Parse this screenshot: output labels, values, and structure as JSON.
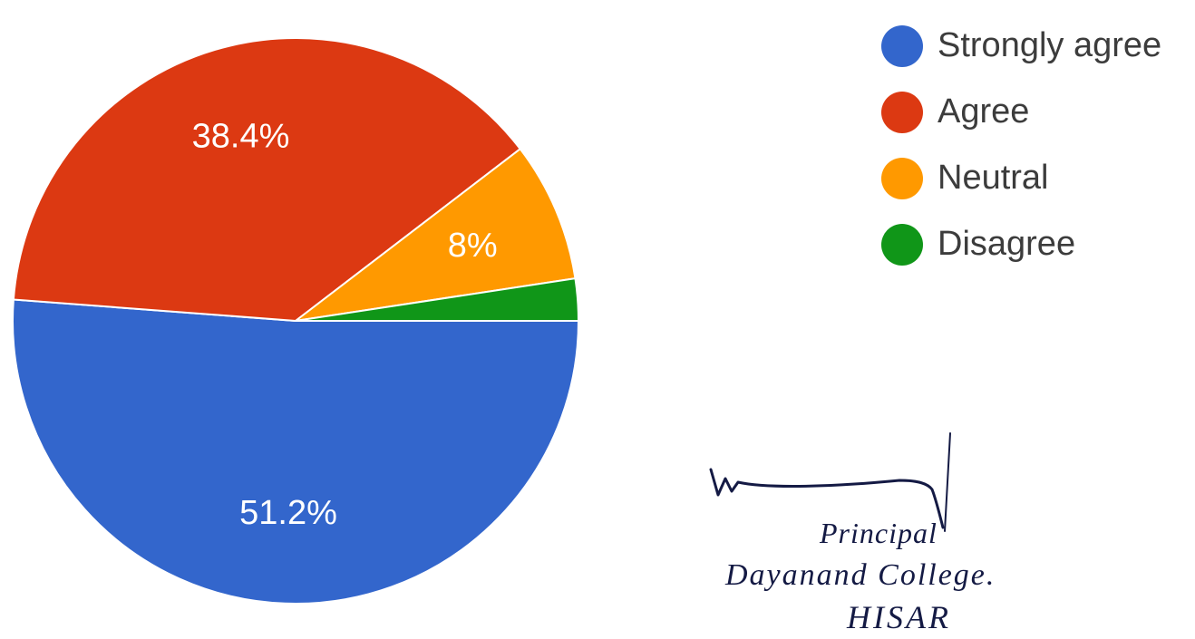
{
  "chart_data": {
    "type": "pie",
    "slices": [
      {
        "label": "Strongly agree",
        "value": 51.2,
        "display": "51.2%",
        "color": "#3366cc"
      },
      {
        "label": "Agree",
        "value": 38.4,
        "display": "38.4%",
        "color": "#dc3912"
      },
      {
        "label": "Neutral",
        "value": 8,
        "display": "8%",
        "color": "#ff9900"
      },
      {
        "label": "Disagree",
        "value": 2.4,
        "display": "",
        "color": "#109618"
      }
    ],
    "start_direction": "right",
    "legend_position": "right"
  },
  "signature": {
    "line1": "Principal",
    "line2": "Dayanand College.",
    "line3": "HISAR"
  }
}
